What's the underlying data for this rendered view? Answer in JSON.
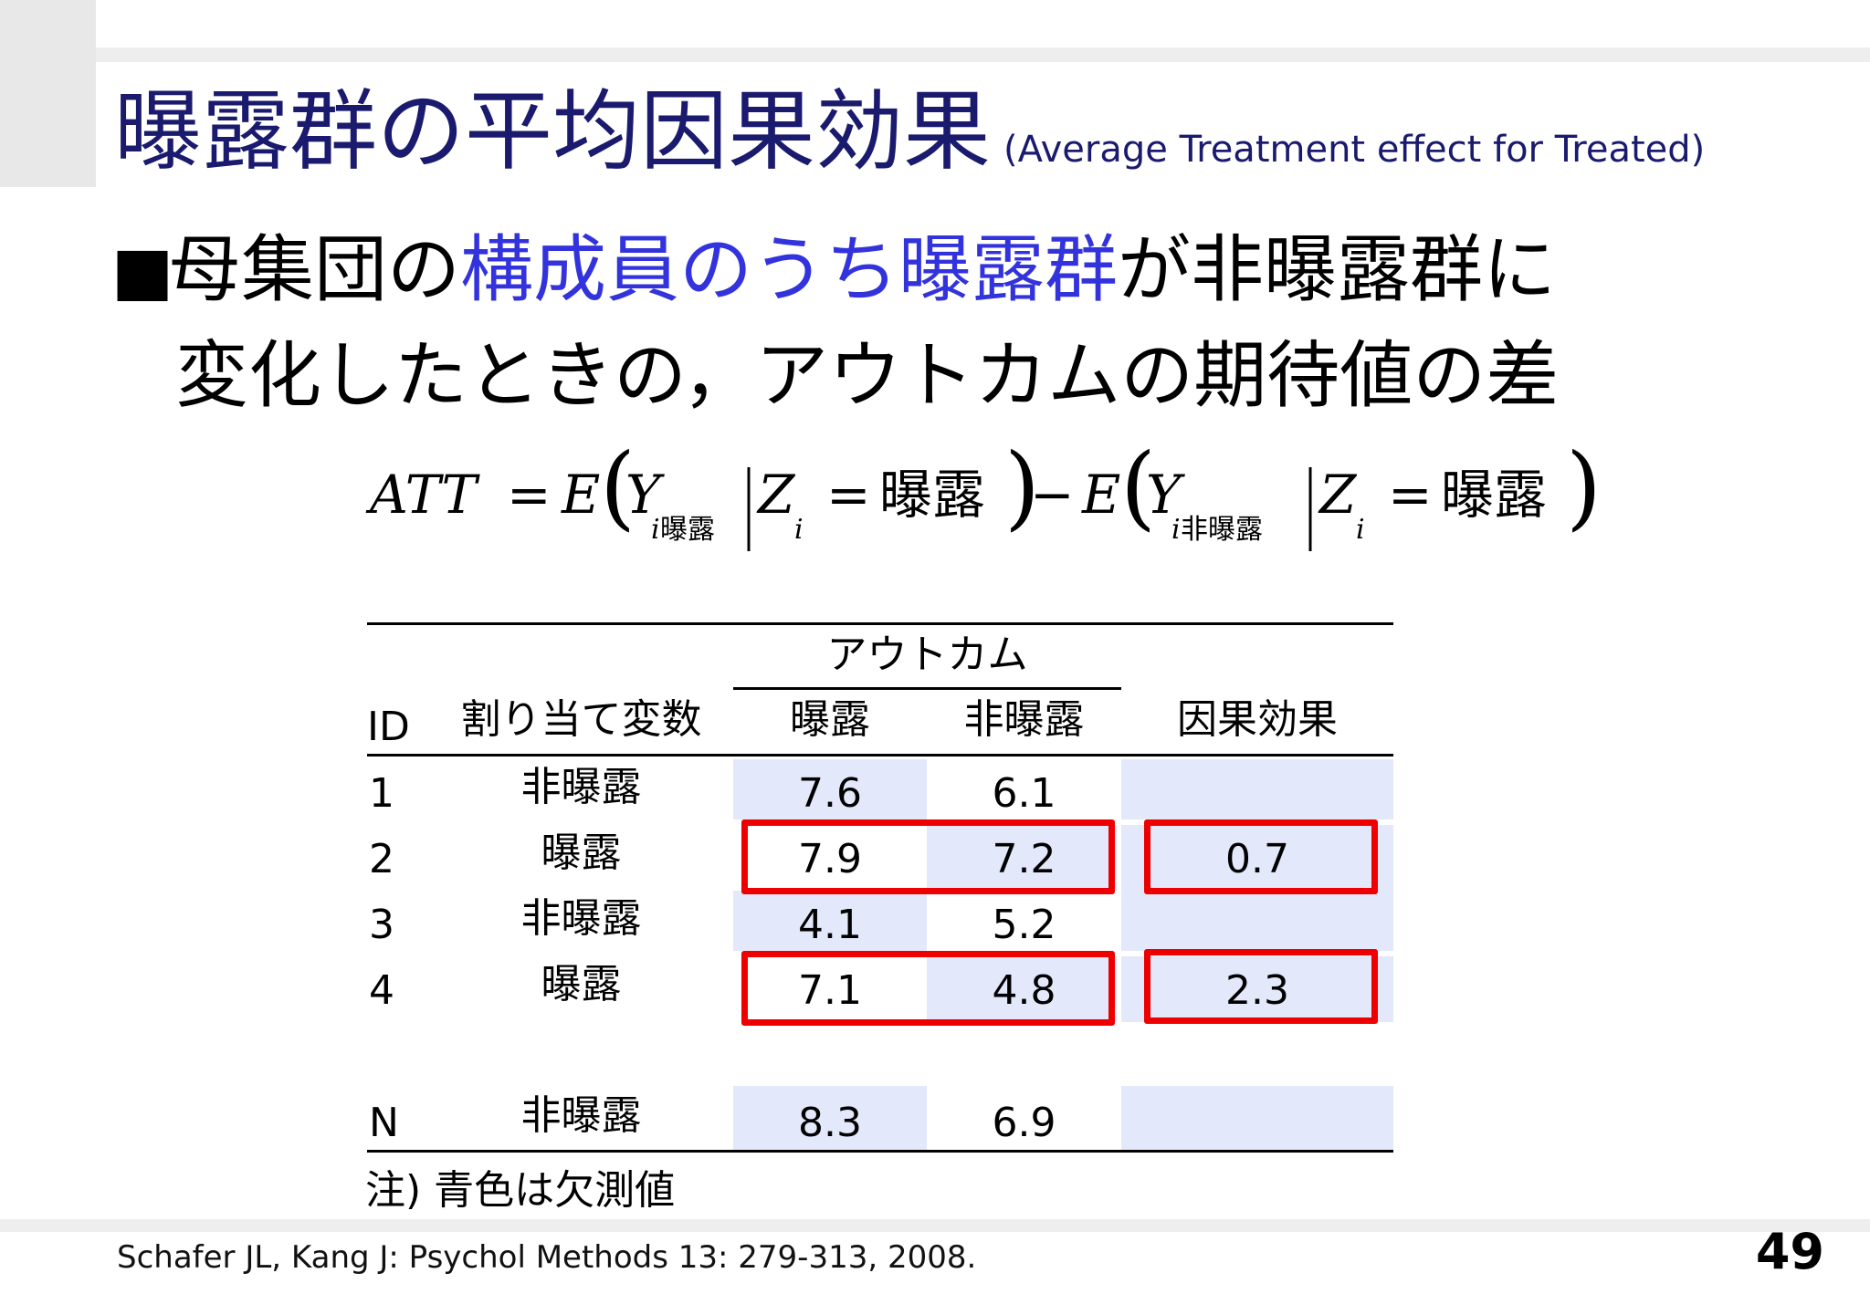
{
  "slide": {
    "title": "曝露群の平均因果効果",
    "title_sub": "(Average Treatment effect for Treated)",
    "bullet": {
      "prefix": "母集団の",
      "highlight": "構成員のうち曝露群",
      "suffix": "が非曝露群に",
      "line2": "変化したときの，アウトカムの期待値の差"
    },
    "formula": {
      "lhs": "ATT",
      "eq": "=",
      "E": "E",
      "Y": "Y",
      "i": "i",
      "exposed": "曝露",
      "nonexposed": "非曝露",
      "Z": "Z",
      "minus": "−"
    },
    "table": {
      "outcome_header": "アウトカム",
      "col_id": "ID",
      "col_assign": "割り当て変数",
      "col_exposed": "曝露",
      "col_nonexposed": "非曝露",
      "col_effect": "因果効果",
      "rows": [
        {
          "id": "1",
          "assign": "非曝露",
          "exposed": "7.6",
          "nonexposed": "6.1",
          "effect": ""
        },
        {
          "id": "2",
          "assign": "曝露",
          "exposed": "7.9",
          "nonexposed": "7.2",
          "effect": "0.7"
        },
        {
          "id": "3",
          "assign": "非曝露",
          "exposed": "4.1",
          "nonexposed": "5.2",
          "effect": ""
        },
        {
          "id": "4",
          "assign": "曝露",
          "exposed": "7.1",
          "nonexposed": "4.8",
          "effect": "2.3"
        },
        {
          "id": "N",
          "assign": "非曝露",
          "exposed": "8.3",
          "nonexposed": "6.9",
          "effect": ""
        }
      ],
      "note": "注) 青色は欠測値",
      "missing_color": "#e4e8fb",
      "highlight_box_color": "#ee0000"
    },
    "citation": "Schafer JL, Kang J: Psychol Methods 13: 279-313, 2008.",
    "page_number": "49"
  }
}
